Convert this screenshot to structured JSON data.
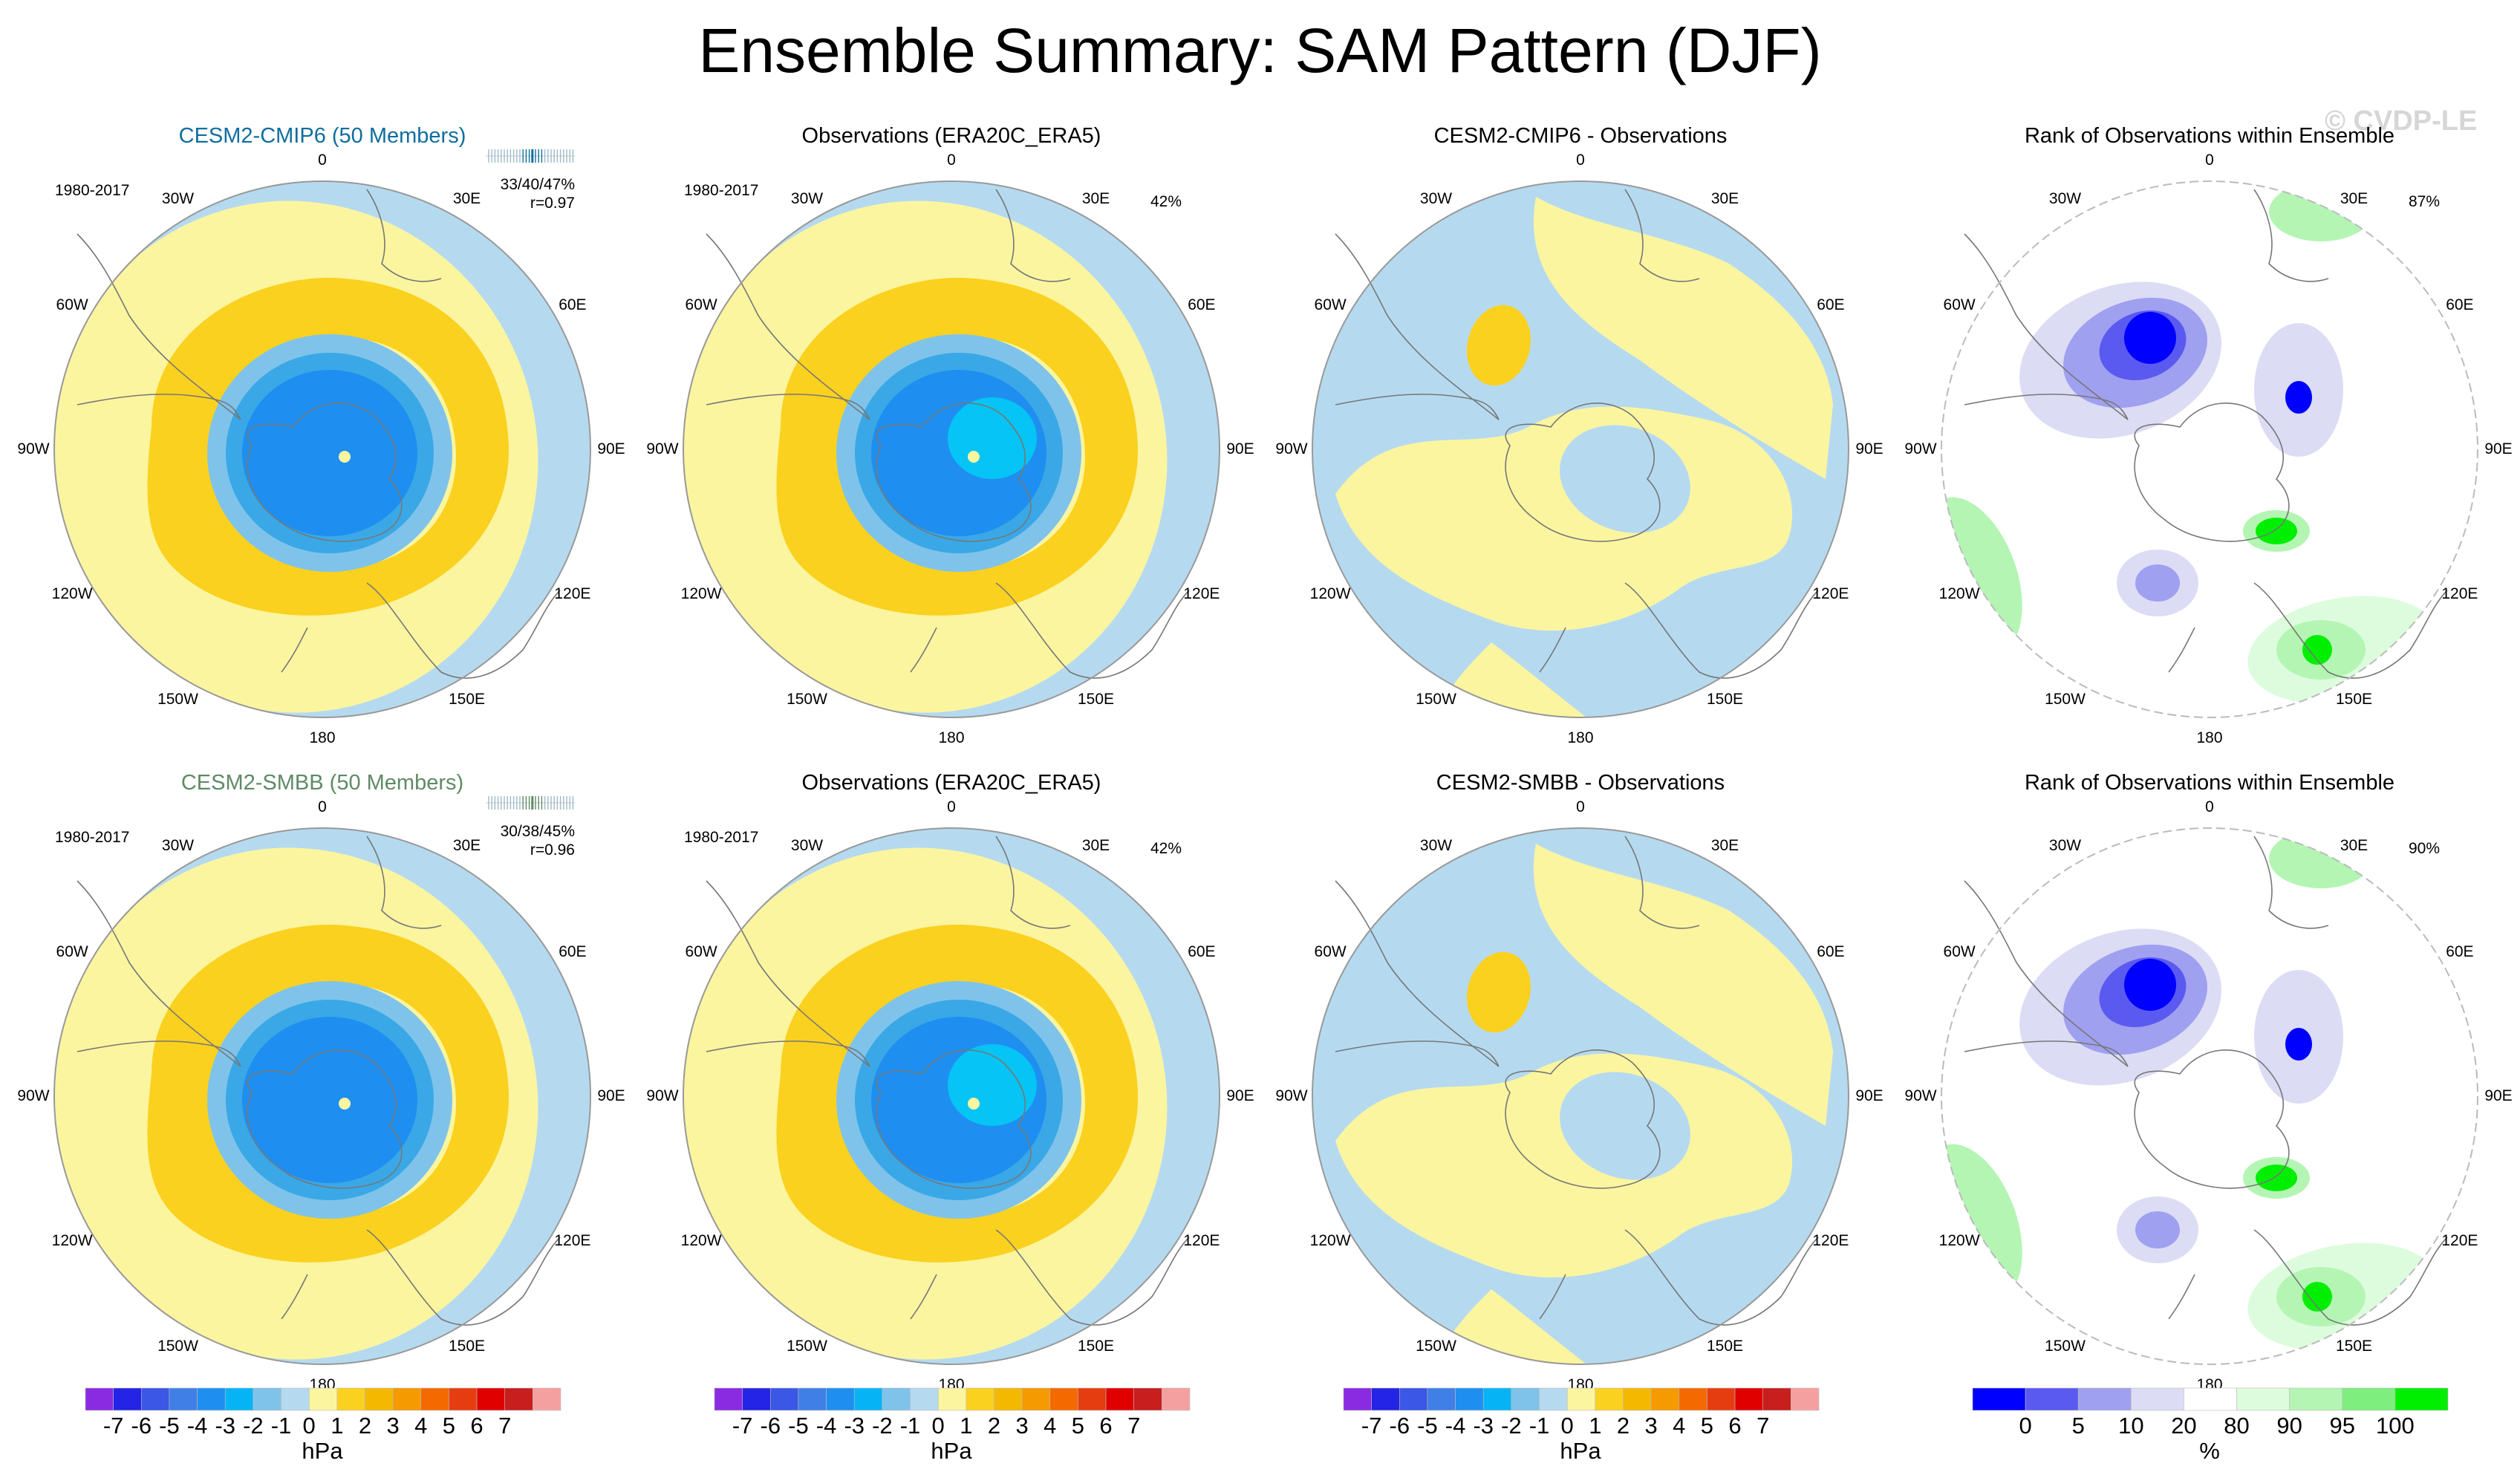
{
  "title": "Ensemble Summary: SAM Pattern (DJF)",
  "watermark": "© CVDP-LE",
  "colors": {
    "model_title_top": "#0f6e9e",
    "model_title_bottom": "#5f8a66",
    "ocean_blue": "#b5daf0",
    "pale_yellow": "#fbf5a0",
    "gold": "#fbd11f",
    "mid_blue": "#7fc3eb",
    "blue2": "#3aa8e6",
    "blue3": "#1e8ff0",
    "cyan": "#06c4f5",
    "rank_white": "#ffffff"
  },
  "longitude_labels": [
    "0",
    "30E",
    "60E",
    "90E",
    "120E",
    "150E",
    "180",
    "150W",
    "120W",
    "90W",
    "60W",
    "30W"
  ],
  "rows": [
    {
      "panels": [
        {
          "title": "CESM2-CMIP6 (50 Members)",
          "period": "1980-2017",
          "stat_line1": "33/40/47%",
          "stat_line2": "r=0.97",
          "kind": "model"
        },
        {
          "title": "Observations (ERA20C_ERA5)",
          "period": "1980-2017",
          "pct": "42%",
          "kind": "obs"
        },
        {
          "title": "CESM2-CMIP6 - Observations",
          "kind": "diff"
        },
        {
          "title": "Rank of Observations within Ensemble",
          "pct": "87%",
          "kind": "rank"
        }
      ]
    },
    {
      "panels": [
        {
          "title": "CESM2-SMBB (50 Members)",
          "period": "1980-2017",
          "stat_line1": "30/38/45%",
          "stat_line2": "r=0.96",
          "kind": "model"
        },
        {
          "title": "Observations (ERA20C_ERA5)",
          "period": "1980-2017",
          "pct": "42%",
          "kind": "obs"
        },
        {
          "title": "CESM2-SMBB - Observations",
          "kind": "diff"
        },
        {
          "title": "Rank of Observations within Ensemble",
          "pct": "90%",
          "kind": "rank"
        }
      ]
    }
  ],
  "legend_hpa": {
    "ticks": [
      "-7",
      "-6",
      "-5",
      "-4",
      "-3",
      "-2",
      "-1",
      "0",
      "1",
      "2",
      "3",
      "4",
      "5",
      "6",
      "7"
    ],
    "unit": "hPa",
    "colors": [
      "#8a2be2",
      "#2424e6",
      "#3a57e6",
      "#3f7fe6",
      "#1e8ff0",
      "#06b4f5",
      "#7fc3eb",
      "#b5daf0",
      "#fbf5a0",
      "#fbd11f",
      "#f5b800",
      "#f59a00",
      "#f56a00",
      "#e63d10",
      "#e00000",
      "#c81e1e",
      "#f5a0a0"
    ]
  },
  "legend_rank": {
    "ticks": [
      "0",
      "5",
      "10",
      "20",
      "80",
      "90",
      "95",
      "100"
    ],
    "unit": "%",
    "colors": [
      "#0000ff",
      "#5a5af0",
      "#a0a0f0",
      "#dcdcf5",
      "#ffffff",
      "#ddfcdd",
      "#b4f5b4",
      "#7eee7e",
      "#00ee00"
    ]
  },
  "chart_data": [
    {
      "type": "heatmap",
      "title": "CESM2-CMIP6 (50 Members)",
      "subtitle": "1980-2017",
      "units": "hPa",
      "range": [
        -7,
        7
      ],
      "projection": "south polar stereographic",
      "annotations": [
        "33/40/47%",
        "r=0.97"
      ]
    },
    {
      "type": "heatmap",
      "title": "Observations (ERA20C_ERA5)",
      "subtitle": "1980-2017",
      "units": "hPa",
      "range": [
        -7,
        7
      ],
      "annotations": [
        "42%"
      ]
    },
    {
      "type": "heatmap",
      "title": "CESM2-CMIP6 - Observations",
      "units": "hPa",
      "range": [
        -7,
        7
      ]
    },
    {
      "type": "heatmap",
      "title": "Rank of Observations within Ensemble",
      "units": "%",
      "levels": [
        0,
        5,
        10,
        20,
        80,
        90,
        95,
        100
      ],
      "annotations": [
        "87%"
      ]
    },
    {
      "type": "heatmap",
      "title": "CESM2-SMBB (50 Members)",
      "subtitle": "1980-2017",
      "units": "hPa",
      "range": [
        -7,
        7
      ],
      "annotations": [
        "30/38/45%",
        "r=0.96"
      ]
    },
    {
      "type": "heatmap",
      "title": "Observations (ERA20C_ERA5)",
      "subtitle": "1980-2017",
      "units": "hPa",
      "range": [
        -7,
        7
      ],
      "annotations": [
        "42%"
      ]
    },
    {
      "type": "heatmap",
      "title": "CESM2-SMBB - Observations",
      "units": "hPa",
      "range": [
        -7,
        7
      ]
    },
    {
      "type": "heatmap",
      "title": "Rank of Observations within Ensemble",
      "units": "%",
      "levels": [
        0,
        5,
        10,
        20,
        80,
        90,
        95,
        100
      ],
      "annotations": [
        "90%"
      ]
    }
  ]
}
